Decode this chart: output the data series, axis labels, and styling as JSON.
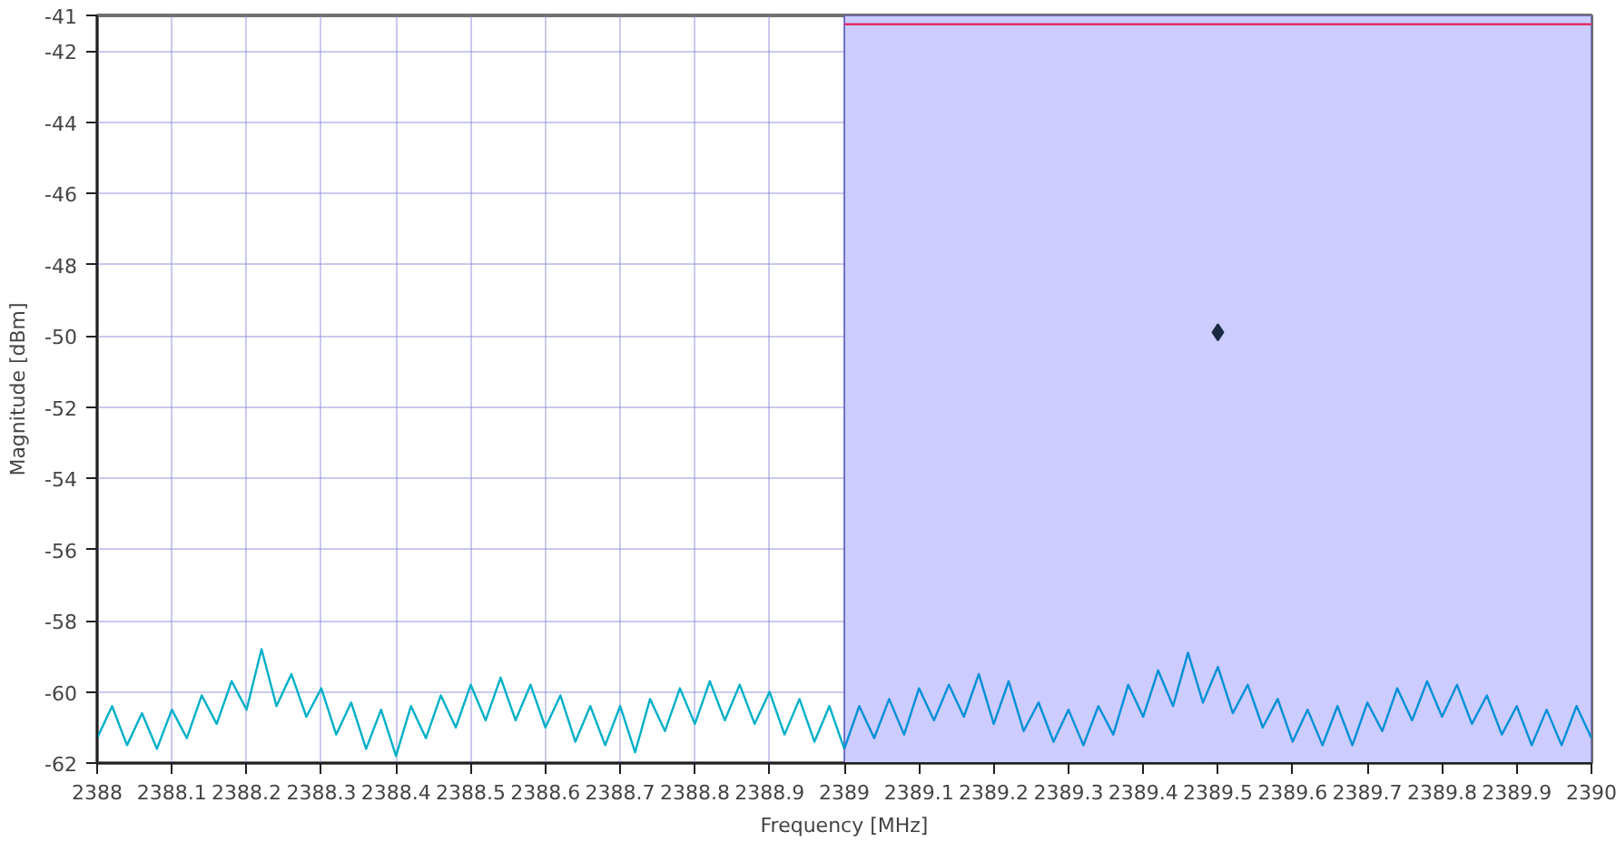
{
  "chart_data": {
    "type": "line",
    "xlabel": "Frequency [MHz]",
    "ylabel": "Magnitude [dBm]",
    "xlim": [
      2388,
      2390
    ],
    "ylim": [
      -62,
      -41
    ],
    "xticks": [
      2388,
      2388.1,
      2388.2,
      2388.3,
      2388.4,
      2388.5,
      2388.6,
      2388.7,
      2388.8,
      2388.9,
      2389,
      2389.1,
      2389.2,
      2389.3,
      2389.4,
      2389.5,
      2389.6,
      2389.7,
      2389.8,
      2389.9,
      2390
    ],
    "yticks": [
      -41,
      -42,
      -44,
      -46,
      -48,
      -50,
      -52,
      -54,
      -56,
      -58,
      -60,
      -62
    ],
    "grid": true,
    "line_style": "solid",
    "bands": [
      {
        "axis": "x",
        "from": 2389,
        "to": 2390,
        "color": "#ccccff"
      }
    ],
    "series": [
      {
        "color": "#00b0c8",
        "x": [
          2388.0,
          2388.02,
          2388.04,
          2388.06,
          2388.08,
          2388.1,
          2388.12,
          2388.14,
          2388.16,
          2388.18,
          2388.2,
          2388.22,
          2388.24,
          2388.26,
          2388.28,
          2388.3,
          2388.32,
          2388.34,
          2388.36,
          2388.38,
          2388.4,
          2388.42,
          2388.44,
          2388.46,
          2388.48,
          2388.5,
          2388.52,
          2388.54,
          2388.56,
          2388.58,
          2388.6,
          2388.62,
          2388.64,
          2388.66,
          2388.68,
          2388.7,
          2388.72,
          2388.74,
          2388.76,
          2388.78,
          2388.8,
          2388.82,
          2388.84,
          2388.86,
          2388.88,
          2388.9,
          2388.92,
          2388.94,
          2388.96,
          2388.98,
          2389.0
        ],
        "values": [
          -61.3,
          -60.4,
          -61.5,
          -60.6,
          -61.6,
          -60.5,
          -61.3,
          -60.1,
          -60.9,
          -59.7,
          -60.5,
          -58.8,
          -60.4,
          -59.5,
          -60.7,
          -59.9,
          -61.2,
          -60.3,
          -61.6,
          -60.5,
          -61.8,
          -60.4,
          -61.3,
          -60.1,
          -61.0,
          -59.8,
          -60.8,
          -59.6,
          -60.8,
          -59.8,
          -61.0,
          -60.1,
          -61.4,
          -60.4,
          -61.5,
          -60.4,
          -61.7,
          -60.2,
          -61.1,
          -59.9,
          -60.9,
          -59.7,
          -60.8,
          -59.8,
          -60.9,
          -60.0,
          -61.2,
          -60.2,
          -61.4,
          -60.4,
          -61.6
        ]
      },
      {
        "color": "#0090d8",
        "x": [
          2389.0,
          2389.02,
          2389.04,
          2389.06,
          2389.08,
          2389.1,
          2389.12,
          2389.14,
          2389.16,
          2389.18,
          2389.2,
          2389.22,
          2389.24,
          2389.26,
          2389.28,
          2389.3,
          2389.32,
          2389.34,
          2389.36,
          2389.38,
          2389.4,
          2389.42,
          2389.44,
          2389.46,
          2389.48,
          2389.5,
          2389.52,
          2389.54,
          2389.56,
          2389.58,
          2389.6,
          2389.62,
          2389.64,
          2389.66,
          2389.68,
          2389.7,
          2389.72,
          2389.74,
          2389.76,
          2389.78,
          2389.8,
          2389.82,
          2389.84,
          2389.86,
          2389.88,
          2389.9,
          2389.92,
          2389.94,
          2389.96,
          2389.98,
          2390.0
        ],
        "values": [
          -61.6,
          -60.4,
          -61.3,
          -60.2,
          -61.2,
          -59.9,
          -60.8,
          -59.8,
          -60.7,
          -59.5,
          -60.9,
          -59.7,
          -61.1,
          -60.3,
          -61.4,
          -60.5,
          -61.5,
          -60.4,
          -61.2,
          -59.8,
          -60.7,
          -59.4,
          -60.4,
          -58.9,
          -60.3,
          -59.3,
          -60.6,
          -59.8,
          -61.0,
          -60.2,
          -61.4,
          -60.5,
          -61.5,
          -60.4,
          -61.5,
          -60.3,
          -61.1,
          -59.9,
          -60.8,
          -59.7,
          -60.7,
          -59.8,
          -60.9,
          -60.1,
          -61.2,
          -60.4,
          -61.5,
          -60.5,
          -61.5,
          -60.4,
          -61.3
        ]
      },
      {
        "color": "#e0306a",
        "x": [
          2389,
          2390
        ],
        "values": [
          -41.25,
          -41.25
        ]
      },
      {
        "type": "scatter",
        "color": "#1a2a40",
        "marker": "diamond",
        "x": [
          2389.5
        ],
        "values": [
          -49.9
        ]
      }
    ]
  }
}
